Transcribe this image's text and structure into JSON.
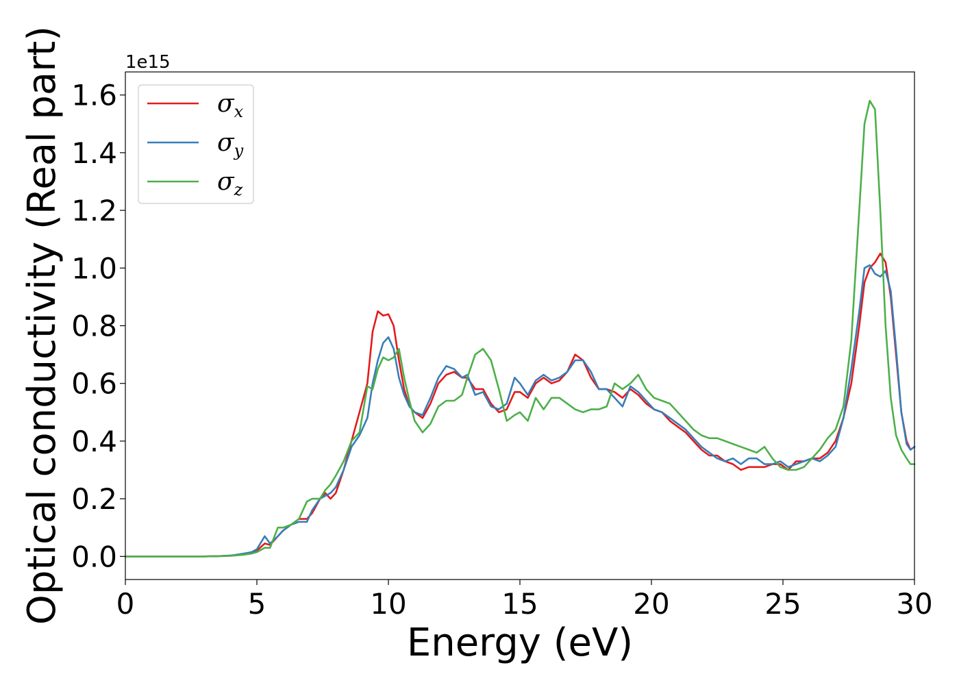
{
  "chart_data": {
    "type": "line",
    "xlabel": "Energy (eV)",
    "ylabel": "Optical conductivity (Real part)",
    "y_offset_label": "1e15",
    "xlim": [
      0,
      30
    ],
    "ylim": [
      -0.08,
      1.68
    ],
    "xticks": [
      0,
      5,
      10,
      15,
      20,
      25,
      30
    ],
    "xtick_labels": [
      "0",
      "5",
      "10",
      "15",
      "20",
      "25",
      "30"
    ],
    "yticks": [
      0.0,
      0.2,
      0.4,
      0.6,
      0.8,
      1.0,
      1.2,
      1.4,
      1.6
    ],
    "ytick_labels": [
      "0.0",
      "0.2",
      "0.4",
      "0.6",
      "0.8",
      "1.0",
      "1.2",
      "1.4",
      "1.6"
    ],
    "grid": false,
    "legend_position": "top-left",
    "series": [
      {
        "name": "σ",
        "subscript": "x",
        "color": "#e41a1c",
        "points": [
          [
            0,
            0
          ],
          [
            1,
            0
          ],
          [
            2,
            0
          ],
          [
            3,
            0
          ],
          [
            3.5,
            0.001
          ],
          [
            4,
            0.003
          ],
          [
            4.5,
            0.008
          ],
          [
            4.8,
            0.012
          ],
          [
            5,
            0.02
          ],
          [
            5.3,
            0.045
          ],
          [
            5.5,
            0.04
          ],
          [
            5.8,
            0.07
          ],
          [
            6,
            0.09
          ],
          [
            6.3,
            0.11
          ],
          [
            6.6,
            0.13
          ],
          [
            6.9,
            0.13
          ],
          [
            7.1,
            0.15
          ],
          [
            7.4,
            0.2
          ],
          [
            7.6,
            0.22
          ],
          [
            7.8,
            0.2
          ],
          [
            8,
            0.22
          ],
          [
            8.3,
            0.3
          ],
          [
            8.6,
            0.4
          ],
          [
            8.9,
            0.5
          ],
          [
            9.2,
            0.6
          ],
          [
            9.4,
            0.78
          ],
          [
            9.6,
            0.85
          ],
          [
            9.8,
            0.835
          ],
          [
            10,
            0.84
          ],
          [
            10.2,
            0.8
          ],
          [
            10.4,
            0.68
          ],
          [
            10.6,
            0.58
          ],
          [
            10.8,
            0.52
          ],
          [
            11,
            0.5
          ],
          [
            11.3,
            0.48
          ],
          [
            11.6,
            0.53
          ],
          [
            11.9,
            0.6
          ],
          [
            12.2,
            0.63
          ],
          [
            12.5,
            0.64
          ],
          [
            12.8,
            0.62
          ],
          [
            13,
            0.62
          ],
          [
            13.3,
            0.58
          ],
          [
            13.6,
            0.58
          ],
          [
            13.9,
            0.53
          ],
          [
            14.2,
            0.5
          ],
          [
            14.5,
            0.51
          ],
          [
            14.8,
            0.57
          ],
          [
            15,
            0.57
          ],
          [
            15.3,
            0.55
          ],
          [
            15.6,
            0.6
          ],
          [
            15.9,
            0.62
          ],
          [
            16.2,
            0.6
          ],
          [
            16.5,
            0.61
          ],
          [
            16.8,
            0.64
          ],
          [
            17.1,
            0.7
          ],
          [
            17.4,
            0.68
          ],
          [
            17.7,
            0.62
          ],
          [
            18,
            0.58
          ],
          [
            18.3,
            0.58
          ],
          [
            18.6,
            0.57
          ],
          [
            18.9,
            0.55
          ],
          [
            19.2,
            0.58
          ],
          [
            19.5,
            0.56
          ],
          [
            19.8,
            0.53
          ],
          [
            20.1,
            0.51
          ],
          [
            20.4,
            0.5
          ],
          [
            20.7,
            0.47
          ],
          [
            21,
            0.45
          ],
          [
            21.3,
            0.43
          ],
          [
            21.6,
            0.4
          ],
          [
            21.9,
            0.37
          ],
          [
            22.2,
            0.35
          ],
          [
            22.5,
            0.35
          ],
          [
            22.8,
            0.33
          ],
          [
            23.1,
            0.32
          ],
          [
            23.4,
            0.3
          ],
          [
            23.7,
            0.31
          ],
          [
            24,
            0.31
          ],
          [
            24.3,
            0.31
          ],
          [
            24.6,
            0.32
          ],
          [
            24.9,
            0.32
          ],
          [
            25.2,
            0.3
          ],
          [
            25.5,
            0.33
          ],
          [
            25.8,
            0.33
          ],
          [
            26.1,
            0.34
          ],
          [
            26.4,
            0.34
          ],
          [
            26.7,
            0.36
          ],
          [
            27,
            0.4
          ],
          [
            27.3,
            0.48
          ],
          [
            27.6,
            0.6
          ],
          [
            27.9,
            0.8
          ],
          [
            28.1,
            0.95
          ],
          [
            28.3,
            1.0
          ],
          [
            28.5,
            1.02
          ],
          [
            28.7,
            1.05
          ],
          [
            28.9,
            1.02
          ],
          [
            29.1,
            0.9
          ],
          [
            29.3,
            0.7
          ],
          [
            29.5,
            0.5
          ],
          [
            29.7,
            0.4
          ],
          [
            29.85,
            0.37
          ],
          [
            30,
            0.38
          ]
        ]
      },
      {
        "name": "σ",
        "subscript": "y",
        "color": "#377eb8",
        "points": [
          [
            0,
            0
          ],
          [
            1,
            0
          ],
          [
            2,
            0
          ],
          [
            3,
            0
          ],
          [
            3.5,
            0.001
          ],
          [
            4,
            0.003
          ],
          [
            4.5,
            0.01
          ],
          [
            4.8,
            0.015
          ],
          [
            5,
            0.025
          ],
          [
            5.3,
            0.07
          ],
          [
            5.5,
            0.045
          ],
          [
            5.8,
            0.07
          ],
          [
            6,
            0.09
          ],
          [
            6.3,
            0.11
          ],
          [
            6.6,
            0.12
          ],
          [
            6.9,
            0.12
          ],
          [
            7.1,
            0.16
          ],
          [
            7.4,
            0.2
          ],
          [
            7.6,
            0.21
          ],
          [
            7.8,
            0.22
          ],
          [
            8,
            0.24
          ],
          [
            8.3,
            0.3
          ],
          [
            8.6,
            0.38
          ],
          [
            8.9,
            0.42
          ],
          [
            9.2,
            0.48
          ],
          [
            9.4,
            0.6
          ],
          [
            9.6,
            0.68
          ],
          [
            9.8,
            0.74
          ],
          [
            10,
            0.76
          ],
          [
            10.2,
            0.72
          ],
          [
            10.4,
            0.62
          ],
          [
            10.6,
            0.56
          ],
          [
            10.8,
            0.52
          ],
          [
            11,
            0.5
          ],
          [
            11.3,
            0.49
          ],
          [
            11.6,
            0.55
          ],
          [
            11.9,
            0.62
          ],
          [
            12.2,
            0.66
          ],
          [
            12.5,
            0.65
          ],
          [
            12.8,
            0.62
          ],
          [
            13,
            0.63
          ],
          [
            13.3,
            0.56
          ],
          [
            13.6,
            0.57
          ],
          [
            13.9,
            0.52
          ],
          [
            14.2,
            0.51
          ],
          [
            14.5,
            0.53
          ],
          [
            14.8,
            0.62
          ],
          [
            15,
            0.6
          ],
          [
            15.3,
            0.56
          ],
          [
            15.6,
            0.61
          ],
          [
            15.9,
            0.63
          ],
          [
            16.2,
            0.61
          ],
          [
            16.5,
            0.62
          ],
          [
            16.8,
            0.64
          ],
          [
            17.1,
            0.68
          ],
          [
            17.4,
            0.68
          ],
          [
            17.7,
            0.64
          ],
          [
            18,
            0.58
          ],
          [
            18.3,
            0.58
          ],
          [
            18.6,
            0.55
          ],
          [
            18.9,
            0.52
          ],
          [
            19.2,
            0.59
          ],
          [
            19.5,
            0.57
          ],
          [
            19.8,
            0.54
          ],
          [
            20.1,
            0.51
          ],
          [
            20.4,
            0.5
          ],
          [
            20.7,
            0.48
          ],
          [
            21,
            0.46
          ],
          [
            21.3,
            0.44
          ],
          [
            21.6,
            0.41
          ],
          [
            21.9,
            0.38
          ],
          [
            22.2,
            0.36
          ],
          [
            22.5,
            0.34
          ],
          [
            22.8,
            0.33
          ],
          [
            23.1,
            0.34
          ],
          [
            23.4,
            0.32
          ],
          [
            23.7,
            0.34
          ],
          [
            24,
            0.34
          ],
          [
            24.3,
            0.32
          ],
          [
            24.6,
            0.32
          ],
          [
            24.9,
            0.33
          ],
          [
            25.2,
            0.31
          ],
          [
            25.5,
            0.32
          ],
          [
            25.8,
            0.33
          ],
          [
            26.1,
            0.34
          ],
          [
            26.4,
            0.33
          ],
          [
            26.7,
            0.35
          ],
          [
            27,
            0.38
          ],
          [
            27.3,
            0.48
          ],
          [
            27.6,
            0.65
          ],
          [
            27.9,
            0.85
          ],
          [
            28.1,
            1.0
          ],
          [
            28.3,
            1.01
          ],
          [
            28.5,
            0.98
          ],
          [
            28.7,
            0.97
          ],
          [
            28.9,
            0.99
          ],
          [
            29.1,
            0.92
          ],
          [
            29.3,
            0.72
          ],
          [
            29.5,
            0.5
          ],
          [
            29.7,
            0.39
          ],
          [
            29.85,
            0.37
          ],
          [
            30,
            0.38
          ]
        ]
      },
      {
        "name": "σ",
        "subscript": "z",
        "color": "#4daf4a",
        "points": [
          [
            0,
            0
          ],
          [
            1,
            0
          ],
          [
            2,
            0
          ],
          [
            3,
            0
          ],
          [
            3.5,
            0.001
          ],
          [
            4,
            0.002
          ],
          [
            4.5,
            0.006
          ],
          [
            4.8,
            0.01
          ],
          [
            5,
            0.015
          ],
          [
            5.3,
            0.03
          ],
          [
            5.5,
            0.03
          ],
          [
            5.8,
            0.1
          ],
          [
            6,
            0.1
          ],
          [
            6.3,
            0.11
          ],
          [
            6.6,
            0.13
          ],
          [
            6.9,
            0.19
          ],
          [
            7.1,
            0.2
          ],
          [
            7.4,
            0.2
          ],
          [
            7.6,
            0.23
          ],
          [
            7.8,
            0.25
          ],
          [
            8,
            0.28
          ],
          [
            8.3,
            0.33
          ],
          [
            8.6,
            0.4
          ],
          [
            8.9,
            0.43
          ],
          [
            9.2,
            0.59
          ],
          [
            9.4,
            0.58
          ],
          [
            9.6,
            0.65
          ],
          [
            9.8,
            0.69
          ],
          [
            10,
            0.68
          ],
          [
            10.2,
            0.69
          ],
          [
            10.4,
            0.72
          ],
          [
            10.6,
            0.62
          ],
          [
            10.8,
            0.54
          ],
          [
            11,
            0.47
          ],
          [
            11.3,
            0.43
          ],
          [
            11.6,
            0.46
          ],
          [
            11.9,
            0.52
          ],
          [
            12.2,
            0.54
          ],
          [
            12.5,
            0.54
          ],
          [
            12.8,
            0.56
          ],
          [
            13,
            0.62
          ],
          [
            13.3,
            0.7
          ],
          [
            13.6,
            0.72
          ],
          [
            13.9,
            0.68
          ],
          [
            14.2,
            0.58
          ],
          [
            14.5,
            0.47
          ],
          [
            14.8,
            0.49
          ],
          [
            15,
            0.5
          ],
          [
            15.3,
            0.47
          ],
          [
            15.6,
            0.55
          ],
          [
            15.9,
            0.51
          ],
          [
            16.2,
            0.55
          ],
          [
            16.5,
            0.55
          ],
          [
            16.8,
            0.53
          ],
          [
            17.1,
            0.51
          ],
          [
            17.4,
            0.5
          ],
          [
            17.7,
            0.51
          ],
          [
            18,
            0.51
          ],
          [
            18.3,
            0.52
          ],
          [
            18.6,
            0.6
          ],
          [
            18.9,
            0.58
          ],
          [
            19.2,
            0.6
          ],
          [
            19.5,
            0.63
          ],
          [
            19.8,
            0.58
          ],
          [
            20.1,
            0.55
          ],
          [
            20.4,
            0.54
          ],
          [
            20.7,
            0.53
          ],
          [
            21,
            0.5
          ],
          [
            21.3,
            0.47
          ],
          [
            21.6,
            0.44
          ],
          [
            21.9,
            0.42
          ],
          [
            22.2,
            0.41
          ],
          [
            22.5,
            0.41
          ],
          [
            22.8,
            0.4
          ],
          [
            23.1,
            0.39
          ],
          [
            23.4,
            0.38
          ],
          [
            23.7,
            0.37
          ],
          [
            24,
            0.36
          ],
          [
            24.3,
            0.38
          ],
          [
            24.6,
            0.34
          ],
          [
            24.9,
            0.31
          ],
          [
            25.2,
            0.3
          ],
          [
            25.5,
            0.3
          ],
          [
            25.8,
            0.31
          ],
          [
            26.1,
            0.34
          ],
          [
            26.4,
            0.37
          ],
          [
            26.7,
            0.41
          ],
          [
            27,
            0.44
          ],
          [
            27.3,
            0.52
          ],
          [
            27.6,
            0.75
          ],
          [
            27.9,
            1.2
          ],
          [
            28.1,
            1.5
          ],
          [
            28.3,
            1.58
          ],
          [
            28.5,
            1.55
          ],
          [
            28.7,
            1.2
          ],
          [
            28.9,
            0.8
          ],
          [
            29.1,
            0.55
          ],
          [
            29.3,
            0.42
          ],
          [
            29.5,
            0.37
          ],
          [
            29.7,
            0.34
          ],
          [
            29.85,
            0.32
          ],
          [
            30,
            0.32
          ]
        ]
      }
    ]
  }
}
